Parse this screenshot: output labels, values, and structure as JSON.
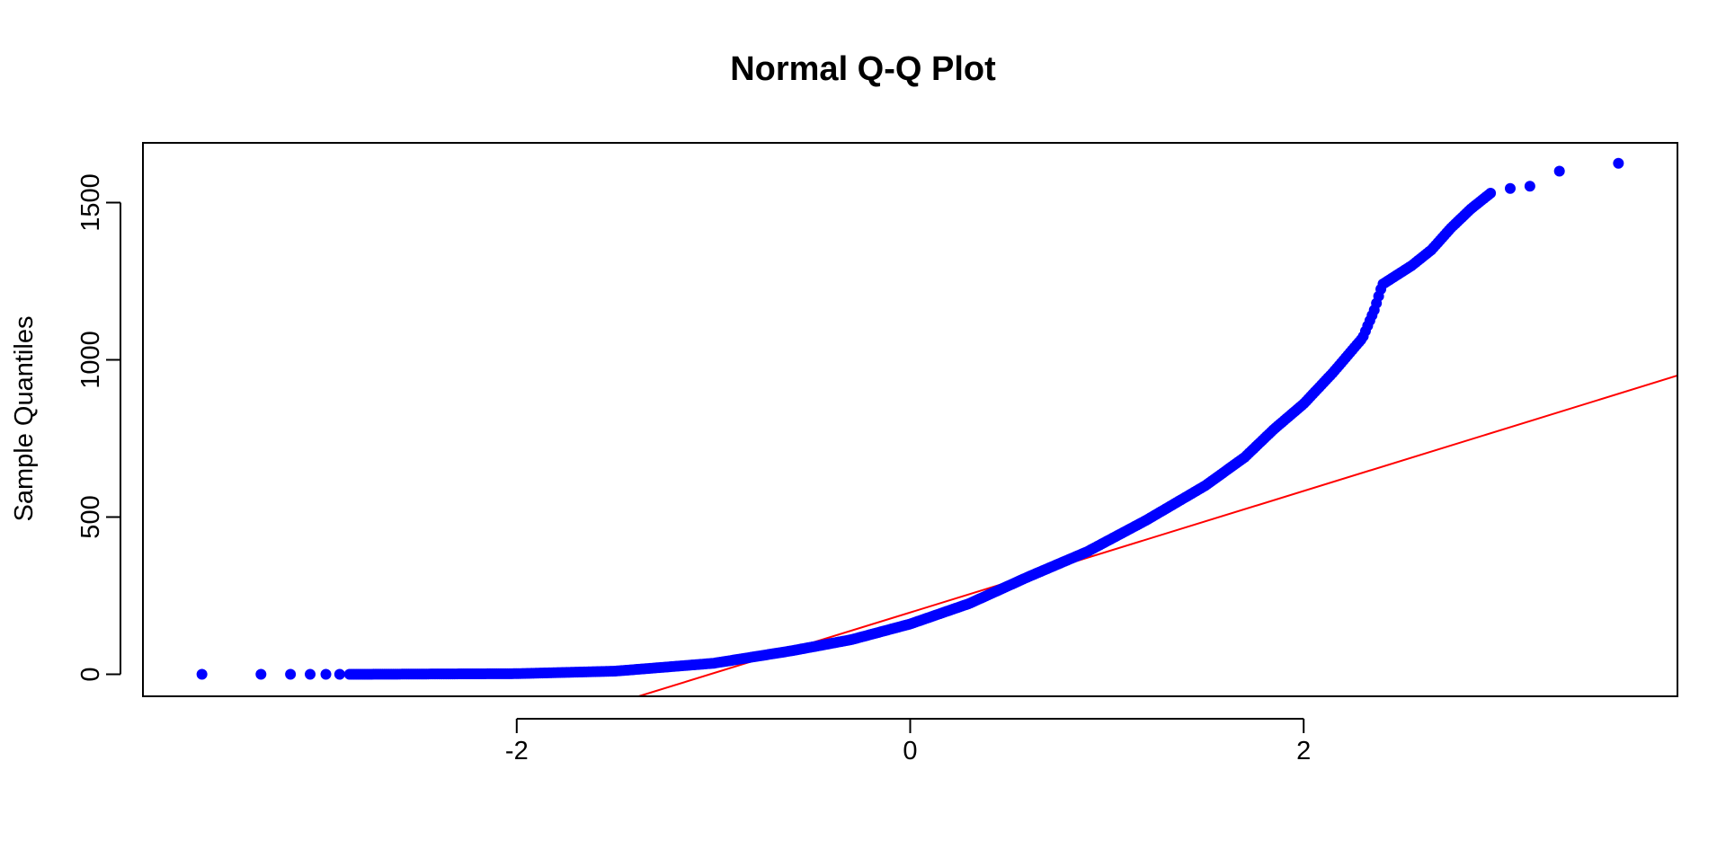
{
  "chart_data": {
    "type": "scatter",
    "title": "Normal Q-Q Plot",
    "xlabel": "",
    "ylabel": "Sample Quantiles",
    "xlim": [
      -3.9,
      3.9
    ],
    "ylim": [
      -70,
      1690
    ],
    "xticks": [
      -2,
      0,
      2
    ],
    "xtick_labels": [
      "-2",
      "0",
      "2"
    ],
    "yticks": [
      0,
      500,
      1000,
      1500
    ],
    "ytick_labels": [
      "0",
      "500",
      "1000",
      "1500"
    ],
    "grid": false,
    "legend": "none",
    "point_color": "#0000ff",
    "line_color": "#ff0000",
    "reference_line": {
      "x1": -1.38,
      "y1": -70,
      "x2": 3.9,
      "y2": 950
    },
    "curve_knots": [
      [
        -3.6,
        0
      ],
      [
        -2.8,
        0
      ],
      [
        -2.0,
        2
      ],
      [
        -1.5,
        10
      ],
      [
        -1.0,
        35
      ],
      [
        -0.6,
        75
      ],
      [
        -0.3,
        110
      ],
      [
        0.0,
        160
      ],
      [
        0.3,
        225
      ],
      [
        0.6,
        310
      ],
      [
        0.9,
        390
      ],
      [
        1.2,
        490
      ],
      [
        1.5,
        600
      ],
      [
        1.7,
        690
      ],
      [
        1.85,
        780
      ],
      [
        2.0,
        860
      ],
      [
        2.15,
        960
      ],
      [
        2.3,
        1070
      ],
      [
        2.36,
        1160
      ],
      [
        2.4,
        1240
      ],
      [
        2.55,
        1300
      ],
      [
        2.65,
        1350
      ],
      [
        2.75,
        1420
      ],
      [
        2.85,
        1480
      ],
      [
        2.95,
        1530
      ]
    ],
    "tail_points": [
      [
        -3.6,
        0
      ],
      [
        -3.3,
        0
      ],
      [
        -3.15,
        0
      ],
      [
        -3.05,
        0
      ],
      [
        -2.97,
        0
      ],
      [
        -2.9,
        0
      ],
      [
        3.05,
        1545
      ],
      [
        3.15,
        1552
      ],
      [
        3.3,
        1600
      ],
      [
        3.6,
        1625
      ]
    ]
  }
}
